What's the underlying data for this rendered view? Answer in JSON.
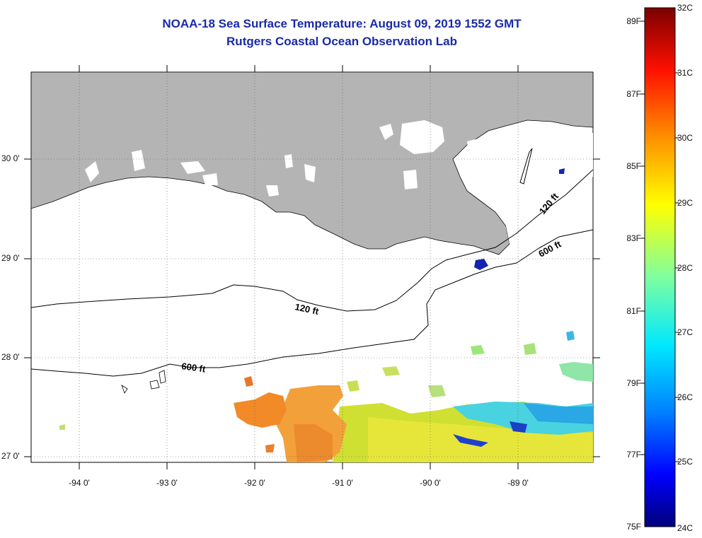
{
  "title_line1": "NOAA-18 Sea Surface Temperature:  August 09, 2019 1552 GMT",
  "title_line2": "Rutgers Coastal Ocean Observation Lab",
  "lon_labels": [
    "-94 0'",
    "-93 0'",
    "-92 0'",
    "-91 0'",
    "-90 0'",
    "-89 0'"
  ],
  "lat_labels": [
    "30 0'",
    "29 0'",
    "28 0'",
    "27 0'"
  ],
  "contours": {
    "shallow_labels": [
      "120 ft",
      "120 ft"
    ],
    "deep_labels": [
      "600 ft",
      "600 ft"
    ]
  },
  "colorbar": {
    "fahrenheit_labels": [
      "89F",
      "87F",
      "85F",
      "83F",
      "81F",
      "79F",
      "77F",
      "75F"
    ],
    "celsius_labels": [
      "32C",
      "31C",
      "30C",
      "29C",
      "28C",
      "27C",
      "26C",
      "25C",
      "24C"
    ],
    "min_c": 24,
    "max_c": 32
  },
  "colors": {
    "land": "#b4b4b4",
    "title": "#1a2aa8"
  }
}
